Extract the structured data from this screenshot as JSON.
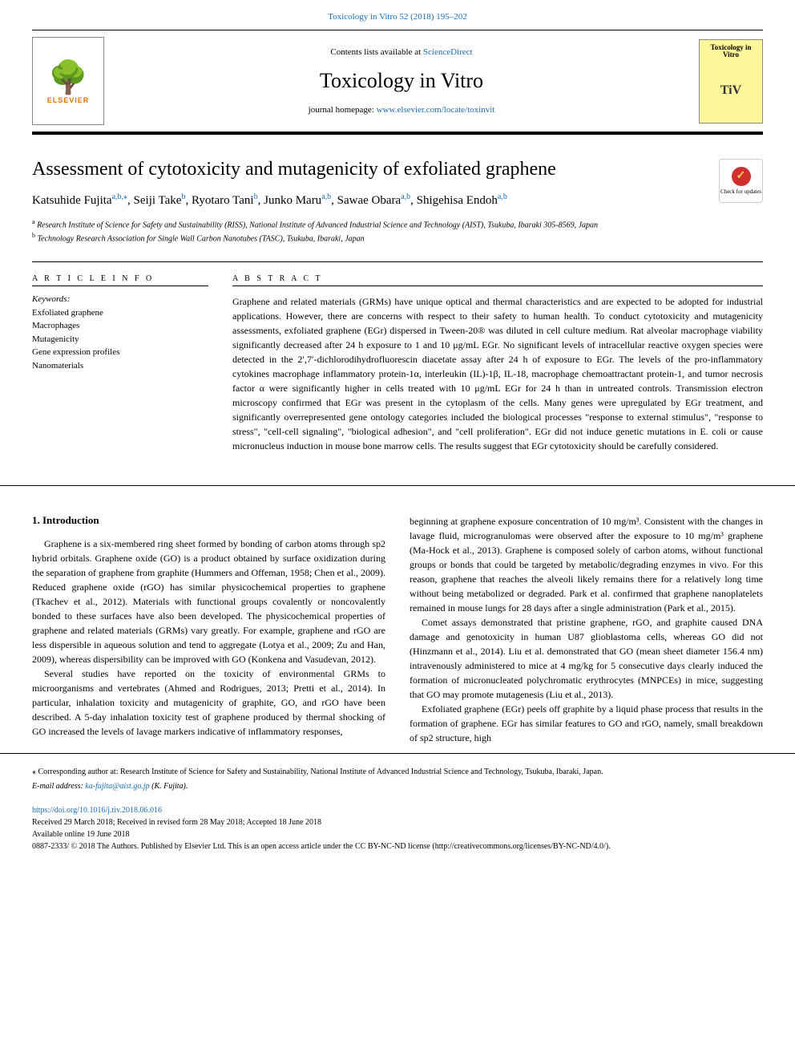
{
  "top_journal_ref": "Toxicology in Vitro 52 (2018) 195–202",
  "header": {
    "contents_prefix": "Contents lists available at ",
    "contents_link": "ScienceDirect",
    "journal_name": "Toxicology in Vitro",
    "homepage_prefix": "journal homepage: ",
    "homepage_url": "www.elsevier.com/locate/toxinvit",
    "publisher": "ELSEVIER",
    "cover_title": "Toxicology in Vitro",
    "cover_abbrev": "TiV"
  },
  "check_updates": "Check for updates",
  "article": {
    "title": "Assessment of cytotoxicity and mutagenicity of exfoliated graphene",
    "authors": [
      {
        "name": "Katsuhide Fujita",
        "sup": "a,b,",
        "corr": "⁎"
      },
      {
        "name": "Seiji Take",
        "sup": "b"
      },
      {
        "name": "Ryotaro Tani",
        "sup": "b"
      },
      {
        "name": "Junko Maru",
        "sup": "a,b"
      },
      {
        "name": "Sawae Obara",
        "sup": "a,b"
      },
      {
        "name": "Shigehisa Endoh",
        "sup": "a,b"
      }
    ],
    "affiliations": [
      {
        "sup": "a",
        "text": "Research Institute of Science for Safety and Sustainability (RISS), National Institute of Advanced Industrial Science and Technology (AIST), Tsukuba, Ibaraki 305-8569, Japan"
      },
      {
        "sup": "b",
        "text": "Technology Research Association for Single Wall Carbon Nanotubes (TASC), Tsukuba, Ibaraki, Japan"
      }
    ]
  },
  "info": {
    "section_label": "A R T I C L E  I N F O",
    "keywords_label": "Keywords:",
    "keywords": [
      "Exfoliated graphene",
      "Macrophages",
      "Mutagenicity",
      "Gene expression profiles",
      "Nanomaterials"
    ]
  },
  "abstract": {
    "section_label": "A B S T R A C T",
    "text": "Graphene and related materials (GRMs) have unique optical and thermal characteristics and are expected to be adopted for industrial applications. However, there are concerns with respect to their safety to human health. To conduct cytotoxicity and mutagenicity assessments, exfoliated graphene (EGr) dispersed in Tween-20® was diluted in cell culture medium. Rat alveolar macrophage viability significantly decreased after 24 h exposure to 1 and 10 μg/mL EGr. No significant levels of intracellular reactive oxygen species were detected in the 2′,7′-dichlorodihydrofluorescin diacetate assay after 24 h of exposure to EGr. The levels of the pro-inflammatory cytokines macrophage inflammatory protein-1α, interleukin (IL)-1β, IL-18, macrophage chemoattractant protein-1, and tumor necrosis factor α were significantly higher in cells treated with 10 μg/mL EGr for 24 h than in untreated controls. Transmission electron microscopy confirmed that EGr was present in the cytoplasm of the cells. Many genes were upregulated by EGr treatment, and significantly overrepresented gene ontology categories included the biological processes \"response to external stimulus\", \"response to stress\", \"cell-cell signaling\", \"biological adhesion\", and \"cell proliferation\". EGr did not induce genetic mutations in E. coli or cause micronucleus induction in mouse bone marrow cells. The results suggest that EGr cytotoxicity should be carefully considered."
  },
  "body": {
    "intro_heading": "1. Introduction",
    "left_paras": [
      "Graphene is a six-membered ring sheet formed by bonding of carbon atoms through sp2 hybrid orbitals. Graphene oxide (GO) is a product obtained by surface oxidization during the separation of graphene from graphite (Hummers and Offeman, 1958; Chen et al., 2009). Reduced graphene oxide (rGO) has similar physicochemical properties to graphene (Tkachev et al., 2012). Materials with functional groups covalently or noncovalently bonded to these surfaces have also been developed. The physicochemical properties of graphene and related materials (GRMs) vary greatly. For example, graphene and rGO are less dispersible in aqueous solution and tend to aggregate (Lotya et al., 2009; Zu and Han, 2009), whereas dispersibility can be improved with GO (Konkena and Vasudevan, 2012).",
      "Several studies have reported on the toxicity of environmental GRMs to microorganisms and vertebrates (Ahmed and Rodrigues, 2013; Pretti et al., 2014). In particular, inhalation toxicity and mutagenicity of graphite, GO, and rGO have been described. A 5-day inhalation toxicity test of graphene produced by thermal shocking of GO increased the levels of lavage markers indicative of inflammatory responses,"
    ],
    "right_paras": [
      "beginning at graphene exposure concentration of 10 mg/m³. Consistent with the changes in lavage fluid, microgranulomas were observed after the exposure to 10 mg/m³ graphene (Ma-Hock et al., 2013). Graphene is composed solely of carbon atoms, without functional groups or bonds that could be targeted by metabolic/degrading enzymes in vivo. For this reason, graphene that reaches the alveoli likely remains there for a relatively long time without being metabolized or degraded. Park et al. confirmed that graphene nanoplatelets remained in mouse lungs for 28 days after a single administration (Park et al., 2015).",
      "Comet assays demonstrated that pristine graphene, rGO, and graphite caused DNA damage and genotoxicity in human U87 glioblastoma cells, whereas GO did not (Hinzmann et al., 2014). Liu et al. demonstrated that GO (mean sheet diameter 156.4 nm) intravenously administered to mice at 4 mg/kg for 5 consecutive days clearly induced the formation of micronucleated polychromatic erythrocytes (MNPCEs) in mice, suggesting that GO may promote mutagenesis (Liu et al., 2013).",
      "Exfoliated graphene (EGr) peels off graphite by a liquid phase process that results in the formation of graphene. EGr has similar features to GO and rGO, namely, small breakdown of sp2 structure, high"
    ]
  },
  "footer": {
    "corr_note": "⁎ Corresponding author at: Research Institute of Science for Safety and Sustainability, National Institute of Advanced Industrial Science and Technology, Tsukuba, Ibaraki, Japan.",
    "email_label": "E-mail address: ",
    "email": "ka-fujita@aist.go.jp",
    "email_name": " (K. Fujita).",
    "doi": "https://doi.org/10.1016/j.tiv.2018.06.016",
    "received": "Received 29 March 2018; Received in revised form 28 May 2018; Accepted 18 June 2018",
    "available": "Available online 19 June 2018",
    "copyright": "0887-2333/ © 2018 The Authors. Published by Elsevier Ltd. This is an open access article under the CC BY-NC-ND license (http://creativecommons.org/licenses/BY-NC-ND/4.0/)."
  },
  "colors": {
    "link": "#1a6db5",
    "publisher_orange": "#e47401",
    "cover_yellow": "#fff89a",
    "check_red": "#d32f2f"
  }
}
